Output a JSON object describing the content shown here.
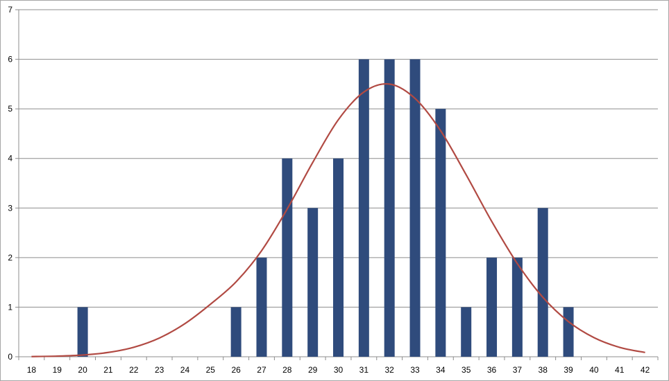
{
  "chart_data": {
    "type": "bar",
    "categories": [
      "18",
      "19",
      "20",
      "21",
      "22",
      "23",
      "24",
      "25",
      "26",
      "27",
      "28",
      "29",
      "30",
      "31",
      "32",
      "33",
      "34",
      "35",
      "36",
      "37",
      "38",
      "39",
      "40",
      "41",
      "42"
    ],
    "series": [
      {
        "type": "bar",
        "color": "#2f4b7c",
        "values": [
          0,
          0,
          1,
          0,
          0,
          0,
          0,
          0,
          1,
          2,
          4,
          3,
          4,
          6,
          6,
          6,
          5,
          1,
          2,
          2,
          3,
          1,
          0,
          0,
          0
        ]
      },
      {
        "type": "line",
        "color": "#b14a43",
        "values": [
          0.004,
          0.013,
          0.035,
          0.087,
          0.192,
          0.378,
          0.668,
          1.06,
          1.51,
          2.14,
          2.98,
          3.92,
          4.78,
          5.34,
          5.5,
          5.21,
          4.56,
          3.67,
          2.73,
          1.88,
          1.2,
          0.709,
          0.386,
          0.19,
          0.086
        ]
      }
    ],
    "title": "",
    "xlabel": "",
    "ylabel": "",
    "ylim": [
      0,
      7
    ],
    "yticks": [
      "0",
      "1",
      "2",
      "3",
      "4",
      "5",
      "6",
      "7"
    ],
    "grid": true,
    "legend": "none"
  }
}
